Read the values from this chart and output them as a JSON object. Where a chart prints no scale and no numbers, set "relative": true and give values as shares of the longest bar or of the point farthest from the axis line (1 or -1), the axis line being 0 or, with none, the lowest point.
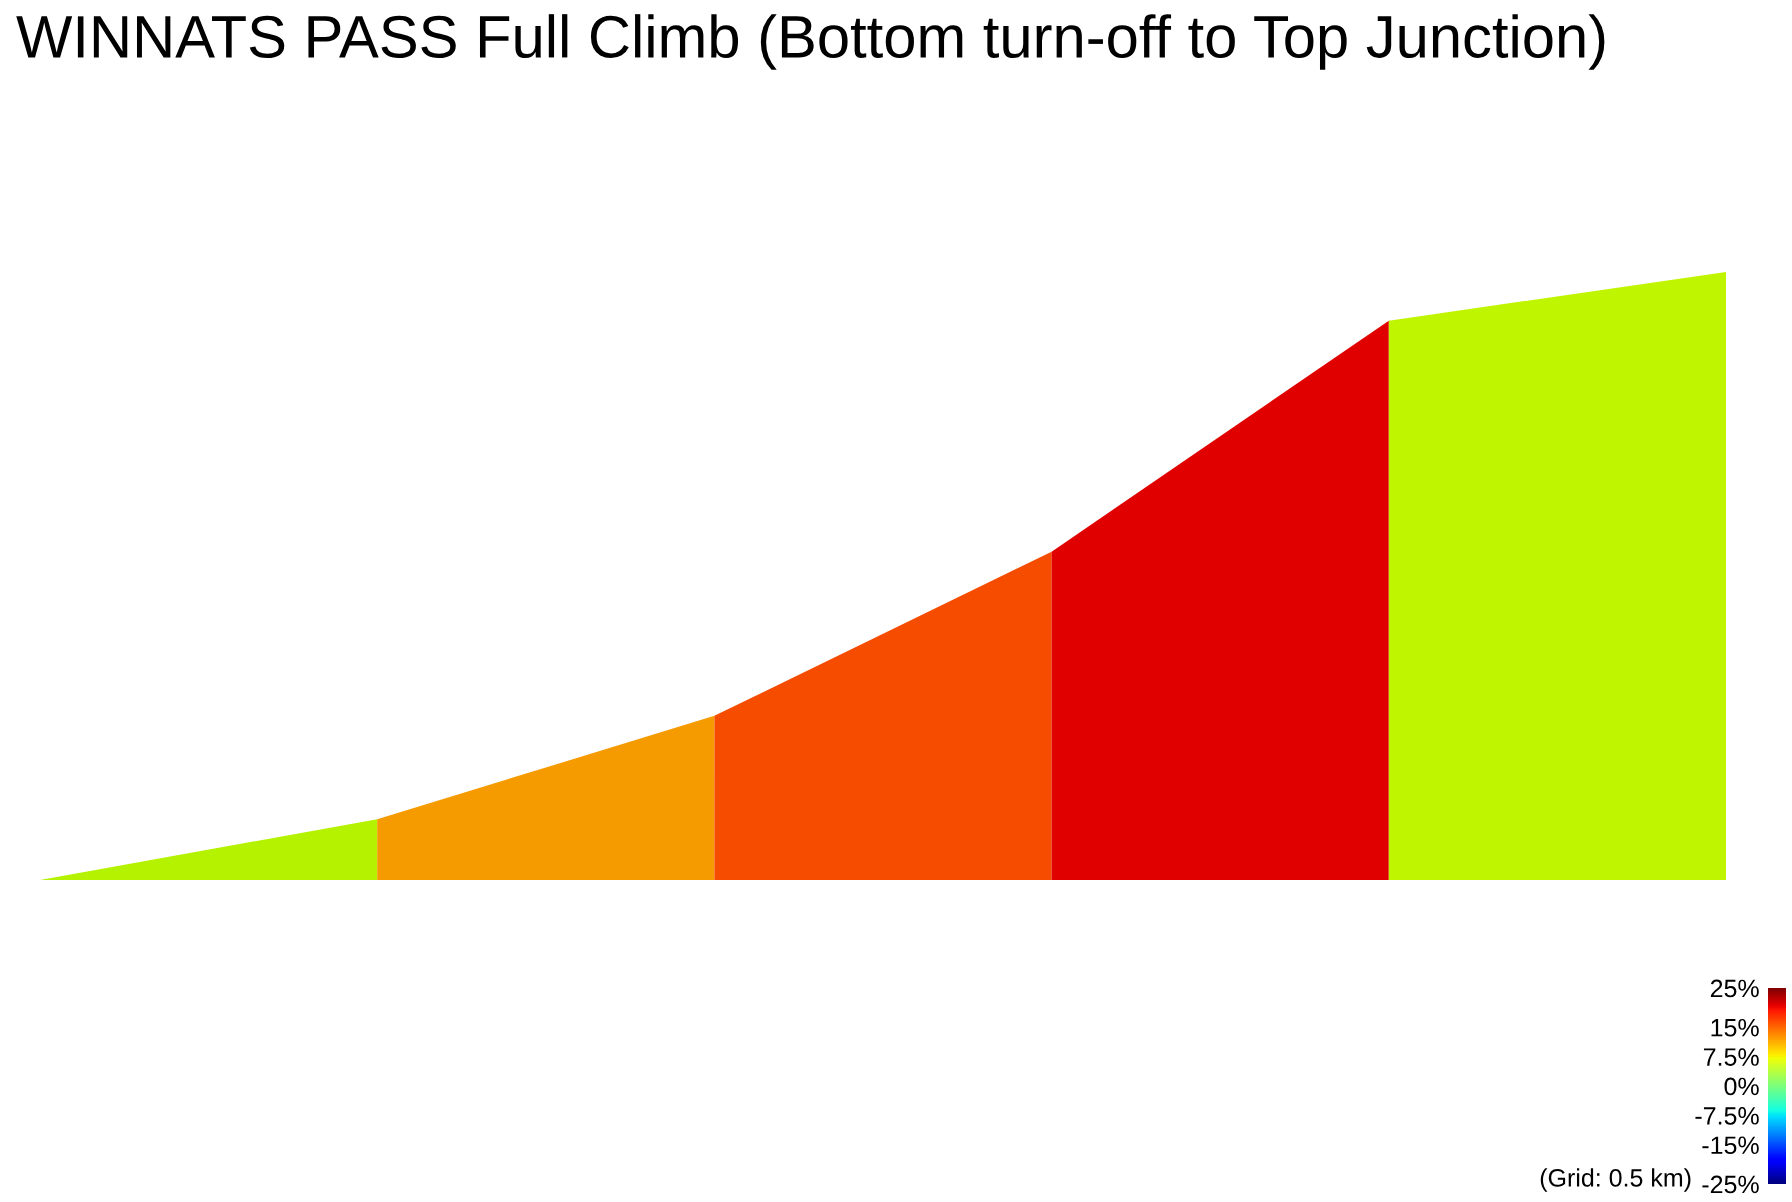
{
  "chart_data": {
    "type": "area",
    "title": "WINNATS PASS Full Climb (Bottom turn-off to Top Junction)",
    "relative": true,
    "categories": [
      null,
      null,
      null,
      null,
      null,
      null
    ],
    "series": [
      {
        "color": "#b4f200",
        "values": [
          0,
          0.1,
          null,
          null,
          null,
          null
        ]
      },
      {
        "color": "#f59b00",
        "values": [
          null,
          0.1,
          0.27,
          null,
          null,
          null
        ]
      },
      {
        "color": "#f54c00",
        "values": [
          null,
          null,
          0.27,
          0.54,
          null,
          null
        ]
      },
      {
        "color": "#e00000",
        "values": [
          null,
          null,
          null,
          0.54,
          0.92,
          null
        ]
      },
      {
        "color": "#c0f500",
        "values": [
          null,
          null,
          null,
          null,
          0.92,
          1
        ]
      }
    ],
    "clim": [
      -25,
      25
    ],
    "cticks": [
      {
        "value": -25,
        "label": "-25%"
      },
      {
        "value": -15,
        "label": "-15%"
      },
      {
        "value": -7.5,
        "label": "-7.5%"
      },
      {
        "value": 0,
        "label": "0%"
      },
      {
        "value": 7.5,
        "label": "7.5%"
      },
      {
        "value": 15,
        "label": "15%"
      },
      {
        "value": 25,
        "label": "25%"
      }
    ],
    "annotations": [
      "(Grid: 0.5 km)"
    ]
  }
}
